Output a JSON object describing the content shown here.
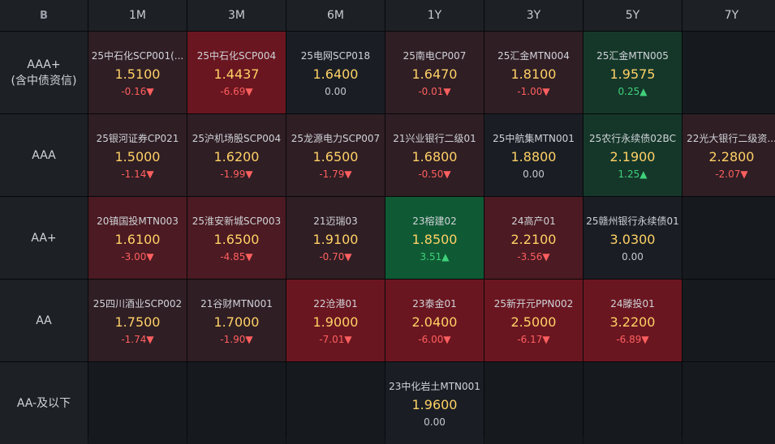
{
  "corner_label": "B",
  "columns": [
    "1M",
    "3M",
    "6M",
    "1Y",
    "3Y",
    "5Y",
    "7Y"
  ],
  "rows": [
    {
      "label_lines": [
        "AAA+",
        "(含中债资信)"
      ],
      "cells": [
        {
          "name": "25中石化SCP001(...",
          "rate": "1.5100",
          "change": "-0.16",
          "dir": "neg",
          "tone": "red1"
        },
        {
          "name": "25中石化SCP004",
          "rate": "1.4437",
          "change": "-6.69",
          "dir": "neg",
          "tone": "red3"
        },
        {
          "name": "25电网SCP018",
          "rate": "1.6400",
          "change": "0.00",
          "dir": "zero",
          "tone": "neutral"
        },
        {
          "name": "25南电CP007",
          "rate": "1.6470",
          "change": "-0.01",
          "dir": "neg",
          "tone": "red1"
        },
        {
          "name": "25汇金MTN004",
          "rate": "1.8100",
          "change": "-1.00",
          "dir": "neg",
          "tone": "red1"
        },
        {
          "name": "25汇金MTN005",
          "rate": "1.9575",
          "change": "0.25",
          "dir": "pos",
          "tone": "green1"
        },
        null
      ]
    },
    {
      "label_lines": [
        "AAA"
      ],
      "cells": [
        {
          "name": "25银河证券CP021",
          "rate": "1.5000",
          "change": "-1.14",
          "dir": "neg",
          "tone": "red1"
        },
        {
          "name": "25沪机场股SCP004",
          "rate": "1.6200",
          "change": "-1.99",
          "dir": "neg",
          "tone": "red1"
        },
        {
          "name": "25龙源电力SCP007",
          "rate": "1.6500",
          "change": "-1.79",
          "dir": "neg",
          "tone": "red1"
        },
        {
          "name": "21兴业银行二级01",
          "rate": "1.6800",
          "change": "-0.50",
          "dir": "neg",
          "tone": "red1"
        },
        {
          "name": "25中航集MTN001",
          "rate": "1.8800",
          "change": "0.00",
          "dir": "zero",
          "tone": "neutral"
        },
        {
          "name": "25农行永续债02BC",
          "rate": "2.1900",
          "change": "1.25",
          "dir": "pos",
          "tone": "green1"
        },
        {
          "name": "22光大银行二级资...",
          "rate": "2.2800",
          "change": "-2.07",
          "dir": "neg",
          "tone": "red1"
        }
      ]
    },
    {
      "label_lines": [
        "AA+"
      ],
      "cells": [
        {
          "name": "20镇国投MTN003",
          "rate": "1.6100",
          "change": "-3.00",
          "dir": "neg",
          "tone": "red2"
        },
        {
          "name": "25淮安新城SCP003",
          "rate": "1.6500",
          "change": "-4.85",
          "dir": "neg",
          "tone": "red2"
        },
        {
          "name": "21迈瑞03",
          "rate": "1.9100",
          "change": "-0.70",
          "dir": "neg",
          "tone": "red1"
        },
        {
          "name": "23榕建02",
          "rate": "1.8500",
          "change": "3.51",
          "dir": "pos",
          "tone": "green2"
        },
        {
          "name": "24高产01",
          "rate": "2.2100",
          "change": "-3.56",
          "dir": "neg",
          "tone": "red2"
        },
        {
          "name": "25赣州银行永续债01",
          "rate": "3.0300",
          "change": "0.00",
          "dir": "zero",
          "tone": "neutral"
        },
        null
      ]
    },
    {
      "label_lines": [
        "AA"
      ],
      "cells": [
        {
          "name": "25四川酒业SCP002",
          "rate": "1.7500",
          "change": "-1.74",
          "dir": "neg",
          "tone": "red1"
        },
        {
          "name": "21谷财MTN001",
          "rate": "1.7000",
          "change": "-1.90",
          "dir": "neg",
          "tone": "red1"
        },
        {
          "name": "22沧港01",
          "rate": "1.9000",
          "change": "-7.01",
          "dir": "neg",
          "tone": "red3"
        },
        {
          "name": "23泰金01",
          "rate": "2.0400",
          "change": "-6.00",
          "dir": "neg",
          "tone": "red3"
        },
        {
          "name": "25新开元PPN002",
          "rate": "2.5000",
          "change": "-6.17",
          "dir": "neg",
          "tone": "red3"
        },
        {
          "name": "24滕投01",
          "rate": "3.2200",
          "change": "-6.89",
          "dir": "neg",
          "tone": "red3"
        },
        null
      ]
    },
    {
      "label_lines": [
        "AA-及以下"
      ],
      "cells": [
        null,
        null,
        null,
        {
          "name": "23中化岩土MTN001",
          "rate": "1.9600",
          "change": "0.00",
          "dir": "zero",
          "tone": "neutral"
        },
        null,
        null,
        null
      ]
    }
  ],
  "arrows": {
    "neg": "▼",
    "pos": "▲",
    "zero": ""
  }
}
